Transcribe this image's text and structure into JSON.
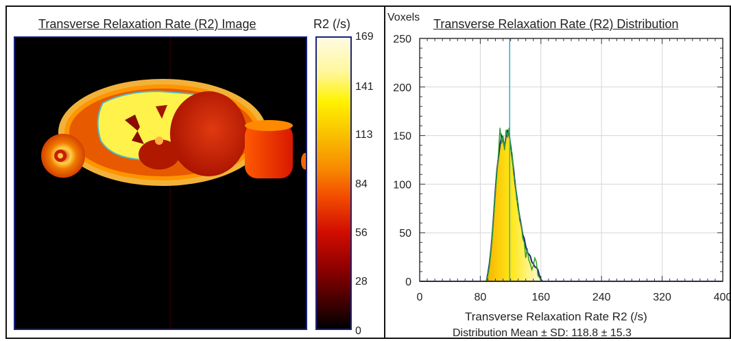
{
  "left_panel": {
    "title": "Transverse Relaxation Rate (R2) Image",
    "colorbar": {
      "unit_label": "R2 (/s)",
      "ticks": [
        "169",
        "141",
        "113",
        "84",
        "56",
        "28",
        "0"
      ],
      "range": [
        0,
        169
      ],
      "colormap": "black-red-orange-yellow-white"
    }
  },
  "chart_data": {
    "type": "bar",
    "title": "Transverse Relaxation Rate (R2) Distribution",
    "ylabel": "Voxels",
    "xlabel": "Transverse Relaxation Rate R2 (/s)",
    "xlim": [
      0,
      400
    ],
    "ylim": [
      0,
      250
    ],
    "x_ticks": [
      "0",
      "80",
      "160",
      "240",
      "320",
      "400"
    ],
    "y_ticks": [
      "0",
      "50",
      "100",
      "150",
      "200",
      "250"
    ],
    "grid": true,
    "mean_marker": 118.8,
    "annotation": "Distribution Mean ± SD: 118.8 ± 15.3",
    "series": [
      {
        "color": "#1a237e",
        "x": [
          88,
          90,
          92,
          94,
          96,
          98,
          100,
          102,
          104,
          106,
          108,
          110,
          112,
          114,
          116,
          118,
          120,
          122,
          124,
          126,
          128,
          130,
          132,
          134,
          136,
          138,
          140,
          142,
          144,
          146,
          148,
          150,
          152,
          154,
          156,
          158,
          160,
          162
        ],
        "values": [
          0,
          8,
          18,
          32,
          50,
          72,
          95,
          115,
          128,
          140,
          150,
          146,
          138,
          150,
          155,
          152,
          140,
          128,
          115,
          100,
          88,
          76,
          66,
          58,
          48,
          44,
          36,
          30,
          28,
          26,
          20,
          18,
          15,
          14,
          12,
          6,
          2,
          0
        ]
      },
      {
        "color": "#2e9e2e",
        "x": [
          88,
          90,
          92,
          94,
          96,
          98,
          100,
          102,
          104,
          106,
          108,
          110,
          112,
          114,
          116,
          118,
          120,
          122,
          124,
          126,
          128,
          130,
          132,
          134,
          136,
          138,
          140,
          142,
          144,
          146,
          148,
          150,
          152,
          154,
          156,
          158,
          160,
          162
        ],
        "values": [
          0,
          6,
          15,
          30,
          48,
          70,
          92,
          112,
          132,
          158,
          142,
          150,
          135,
          156,
          148,
          158,
          136,
          132,
          110,
          104,
          84,
          80,
          62,
          60,
          44,
          40,
          24,
          34,
          22,
          18,
          12,
          16,
          24,
          20,
          6,
          4,
          1,
          0
        ]
      }
    ]
  }
}
